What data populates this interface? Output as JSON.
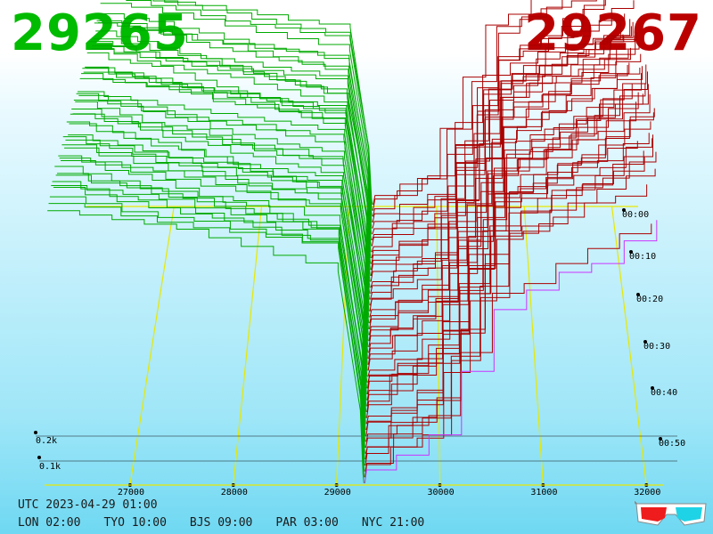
{
  "prices": {
    "bid": "29265",
    "ask": "29267"
  },
  "colors": {
    "bid": "#00bb00",
    "ask": "#bb0000",
    "bid_line": "#00aa00",
    "ask_line": "#aa0000",
    "grid": "#e8e800",
    "accent": "#cc33ff"
  },
  "timestamp": "UTC 2023-04-29 01:00",
  "zones": [
    "LON 02:00",
    "TYO 10:00",
    "BJS 09:00",
    "PAR 03:00",
    "NYC 21:00"
  ],
  "icon": "3d-glasses-icon",
  "chart_data": {
    "type": "line",
    "x_ticks": [
      27000,
      28000,
      29000,
      30000,
      31000,
      32000
    ],
    "x_tick_labels": [
      "27000",
      "28000",
      "29000",
      "30000",
      "31000",
      "32000"
    ],
    "depth_labels": [
      "0.1k",
      "0.2k"
    ],
    "time_labels": [
      "00:00",
      "00:10",
      "00:20",
      "00:30",
      "00:40",
      "00:50"
    ],
    "bid_price": 29265,
    "ask_price": 29267,
    "bid_depth_k": [
      0.32,
      0.3,
      0.27,
      0.24,
      0.19,
      0.15,
      0.1,
      0.06,
      0.02
    ],
    "ask_depth_k": [
      0.01,
      0.06,
      0.09,
      0.13,
      0.18,
      0.27,
      0.32,
      0.38
    ],
    "legend": "none",
    "grid": true
  }
}
